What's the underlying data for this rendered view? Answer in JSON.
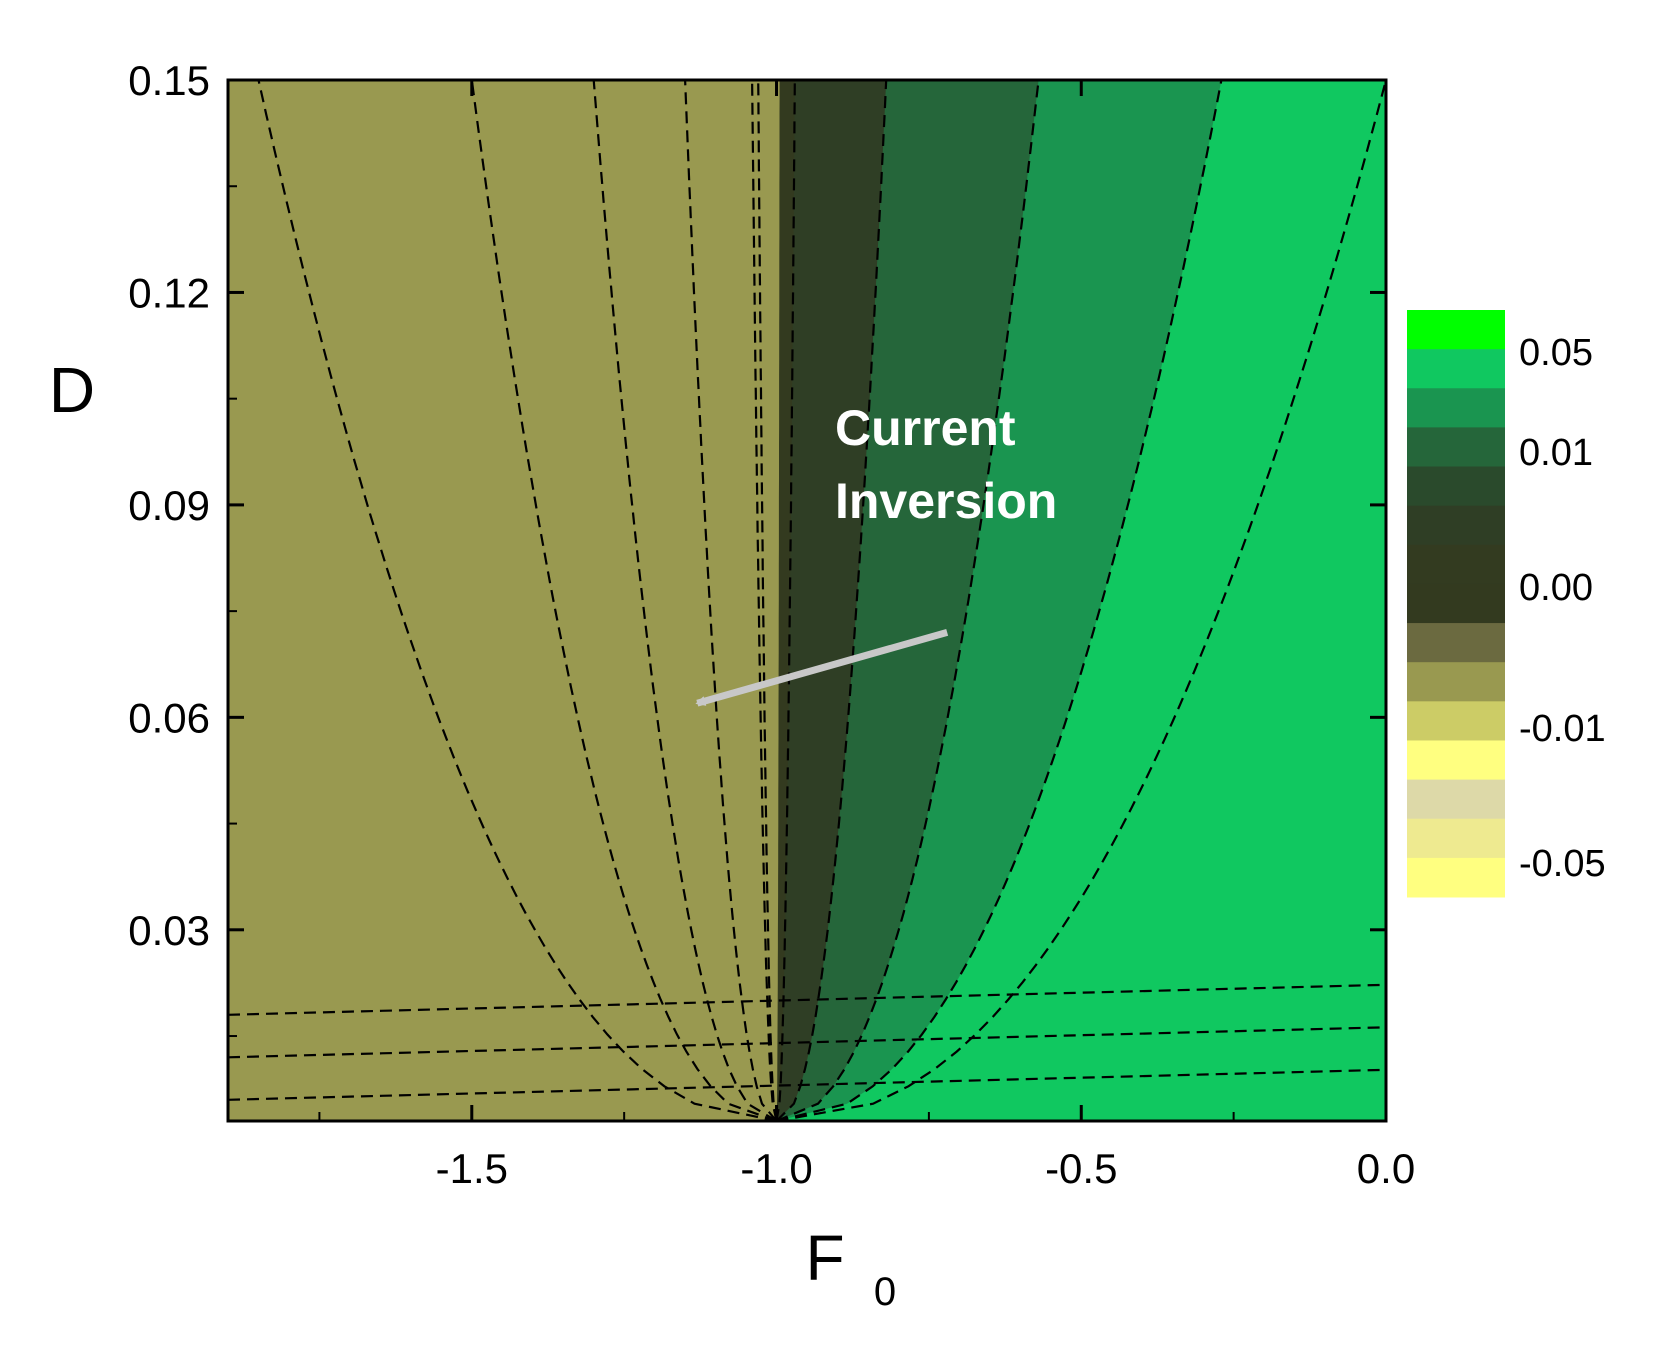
{
  "chart_data": {
    "type": "heatmap",
    "subtype": "filled-contour",
    "xlabel": "F",
    "xlabel_subscript": "0",
    "ylabel": "D",
    "xlim": [
      -1.9,
      0.0
    ],
    "ylim": [
      0.003,
      0.15
    ],
    "x_ticks": [
      -1.5,
      -1.0,
      -0.5,
      0.0
    ],
    "x_tick_labels": [
      "-1.5",
      "-1.0",
      "-0.5",
      "0.0"
    ],
    "y_ticks": [
      0.03,
      0.06,
      0.09,
      0.12,
      0.15
    ],
    "y_tick_labels": [
      "0.03",
      "0.06",
      "0.09",
      "0.12",
      "0.15"
    ],
    "contour_style": "dashed black",
    "colorbar": {
      "colors_top_to_bottom": [
        "#00ff00",
        "#10c860",
        "#1a9550",
        "#25663a",
        "#2a4a2c",
        "#2f3e25",
        "#333b20",
        "#333a1f",
        "#6b6a40",
        "#999950",
        "#cccc66",
        "#ffff80",
        "#ddd9a8",
        "#eeea90",
        "#ffff80"
      ],
      "tick_labels": [
        "0.05",
        "0.01",
        "0.00",
        "-0.01",
        "-0.05"
      ]
    },
    "regions": [
      {
        "name": "region-neg-05",
        "color": "#ffff80",
        "boundary_x_at_top": -1.85
      },
      {
        "name": "region-neg-04",
        "color": "#eeea90",
        "boundary_x_at_top": -1.5
      },
      {
        "name": "region-neg-03",
        "color": "#ddd9a8",
        "boundary_x_at_top": -1.3
      },
      {
        "name": "region-neg-02",
        "color": "#ffff80",
        "boundary_x_at_top": -1.15
      },
      {
        "name": "region-neg-01",
        "color": "#cccc66",
        "boundary_x_at_top": -1.04
      },
      {
        "name": "region-neg-005",
        "color": "#999950",
        "boundary_x_at_top": -1.03
      },
      {
        "name": "region-zero",
        "color": "#333a1f",
        "boundary_x_at_top": -0.97
      },
      {
        "name": "region-pos-001",
        "color": "#2f3e25",
        "boundary_x_at_top": -0.82
      },
      {
        "name": "region-pos-005",
        "color": "#25663a",
        "boundary_x_at_top": -0.57
      },
      {
        "name": "region-pos-01",
        "color": "#1a9550",
        "boundary_x_at_top": -0.27
      },
      {
        "name": "region-pos-05",
        "color": "#10c860",
        "boundary_x_at_top": 0.0
      }
    ],
    "annotations": [
      {
        "text_lines": [
          "Current",
          "Inversion"
        ],
        "arrow_from": [
          -0.72,
          0.072
        ],
        "arrow_to": [
          -1.13,
          0.062
        ]
      }
    ]
  }
}
